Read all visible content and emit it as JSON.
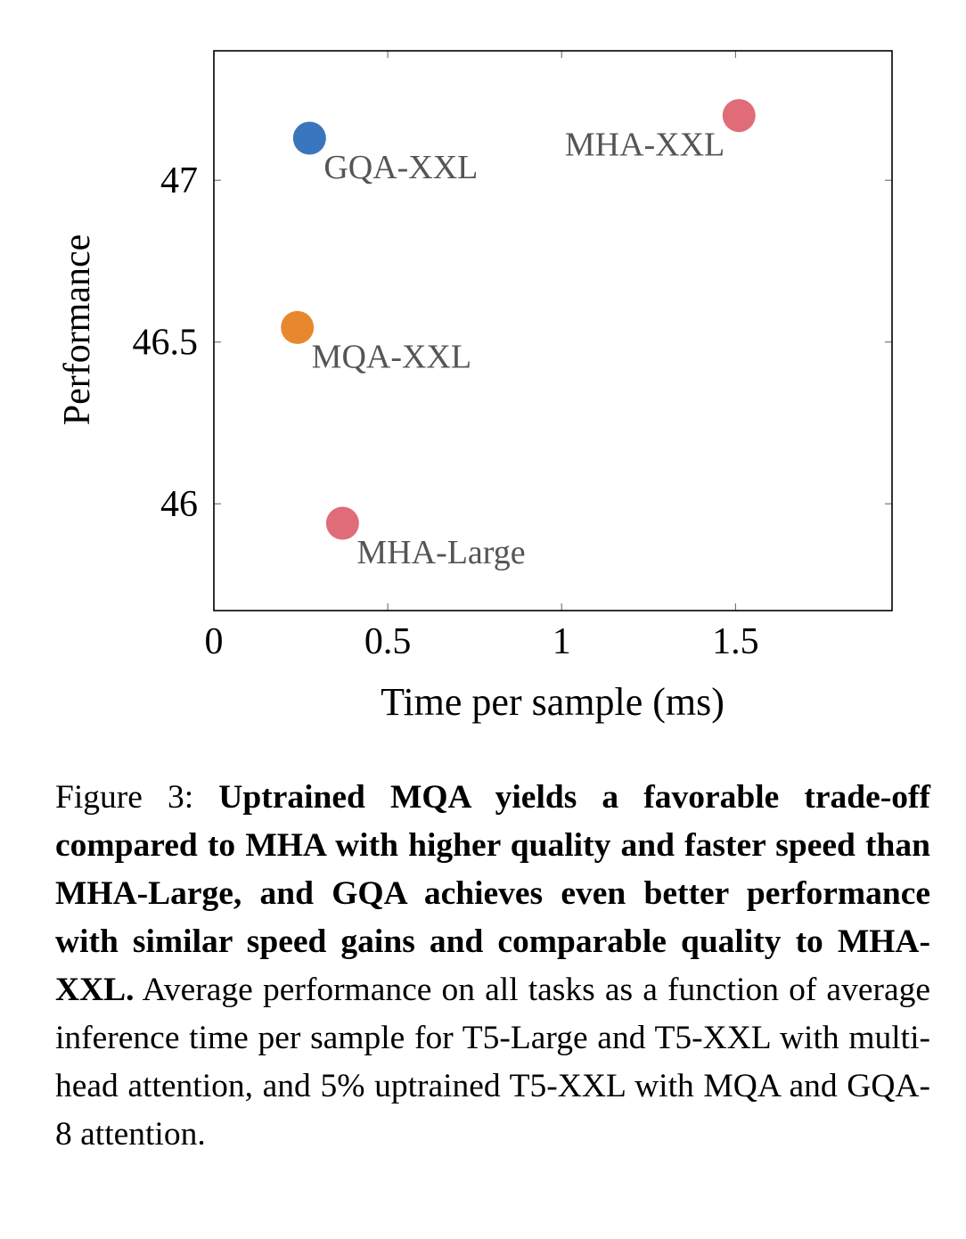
{
  "chart_data": {
    "type": "scatter",
    "xlabel": "Time per sample (ms)",
    "ylabel": "Performance",
    "xlim": [
      0,
      1.95
    ],
    "ylim": [
      45.67,
      47.4
    ],
    "x_ticks": [
      0,
      0.5,
      1,
      1.5
    ],
    "x_tick_labels": [
      "0",
      "0.5",
      "1",
      "1.5"
    ],
    "y_ticks": [
      46,
      46.5,
      47
    ],
    "y_tick_labels": [
      "46",
      "46.5",
      "47"
    ],
    "grid": false,
    "points": [
      {
        "label": "GQA-XXL",
        "x": 0.275,
        "y": 47.13,
        "color": "#3a76bd",
        "label_side": "below-right"
      },
      {
        "label": "MHA-XXL",
        "x": 1.51,
        "y": 47.2,
        "color": "#e16c79",
        "label_side": "below-left"
      },
      {
        "label": "MQA-XXL",
        "x": 0.24,
        "y": 46.545,
        "color": "#e8882e",
        "label_side": "below-right"
      },
      {
        "label": "MHA-Large",
        "x": 0.37,
        "y": 45.94,
        "color": "#e16c79",
        "label_side": "below-right"
      }
    ]
  },
  "caption": {
    "prefix": "Figure 3: ",
    "bold": "Uptrained MQA yields a favorable trade-off compared to MHA with higher quality and faster speed than MHA-Large, and GQA achieves even better performance with similar speed gains and comparable quality to MHA-XXL.",
    "rest": " Average performance on all tasks as a function of average inference time per sample for T5-Large and T5-XXL with multi-head attention, and 5% uptrained T5-XXL with MQA and GQA-8 attention."
  }
}
